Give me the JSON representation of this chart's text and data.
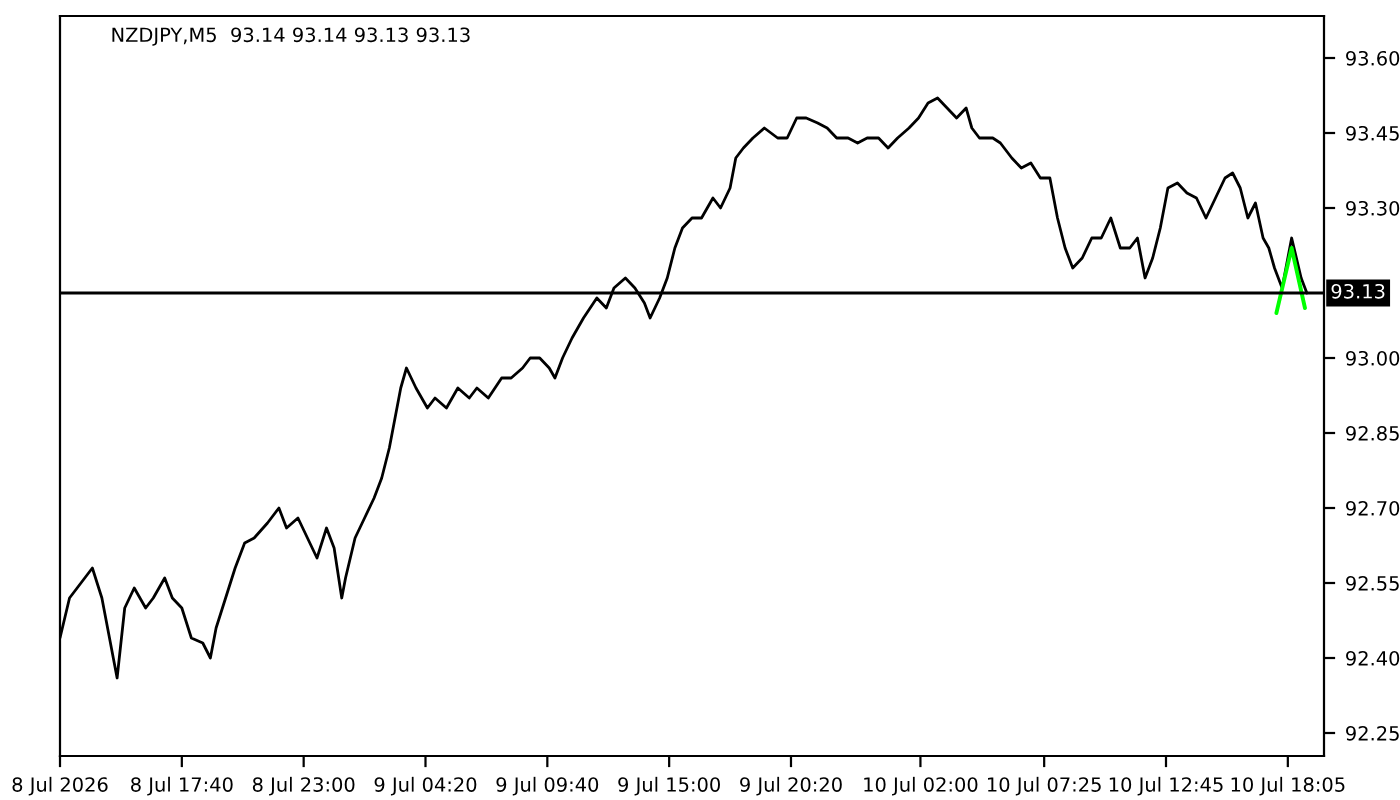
{
  "chart_data": {
    "type": "line",
    "title": "NZDJPY,M5  93.14 93.14 93.13 93.13",
    "ylim": [
      92.204,
      93.684
    ],
    "yticks": [
      {
        "value": 92.25,
        "label": "92.25"
      },
      {
        "value": 92.4,
        "label": "92.40"
      },
      {
        "value": 92.55,
        "label": "92.55"
      },
      {
        "value": 92.7,
        "label": "92.70"
      },
      {
        "value": 92.85,
        "label": "92.85"
      },
      {
        "value": 93.0,
        "label": "93.00"
      },
      {
        "value": 93.3,
        "label": "93.30"
      },
      {
        "value": 93.45,
        "label": "93.45"
      },
      {
        "value": 93.6,
        "label": "93.60"
      }
    ],
    "xlim": [
      "2026-07-08T12:20",
      "2026-07-10T19:40"
    ],
    "xticks": [
      {
        "value": "2026-07-08T12:20",
        "label": "8 Jul 2026"
      },
      {
        "value": "2026-07-08T17:40",
        "label": "8 Jul 17:40"
      },
      {
        "value": "2026-07-08T23:00",
        "label": "8 Jul 23:00"
      },
      {
        "value": "2026-07-09T04:20",
        "label": "9 Jul 04:20"
      },
      {
        "value": "2026-07-09T09:40",
        "label": "9 Jul 09:40"
      },
      {
        "value": "2026-07-09T15:00",
        "label": "9 Jul 15:00"
      },
      {
        "value": "2026-07-09T20:20",
        "label": "9 Jul 20:20"
      },
      {
        "value": "2026-07-10T02:00",
        "label": "10 Jul 02:00"
      },
      {
        "value": "2026-07-10T07:25",
        "label": "10 Jul 07:25"
      },
      {
        "value": "2026-07-10T12:45",
        "label": "10 Jul 12:45"
      },
      {
        "value": "2026-07-10T18:05",
        "label": "10 Jul 18:05"
      }
    ],
    "grid": false,
    "series": [
      {
        "color": "#000000",
        "x": [
          "2026-07-08T12:20",
          "2026-07-08T12:45",
          "2026-07-08T13:05",
          "2026-07-08T13:45",
          "2026-07-08T14:10",
          "2026-07-08T14:35",
          "2026-07-08T14:50",
          "2026-07-08T15:10",
          "2026-07-08T15:35",
          "2026-07-08T16:05",
          "2026-07-08T16:25",
          "2026-07-08T16:55",
          "2026-07-08T17:15",
          "2026-07-08T17:40",
          "2026-07-08T18:05",
          "2026-07-08T18:35",
          "2026-07-08T18:55",
          "2026-07-08T19:10",
          "2026-07-08T19:35",
          "2026-07-08T20:00",
          "2026-07-08T20:25",
          "2026-07-08T20:50",
          "2026-07-08T21:25",
          "2026-07-08T21:55",
          "2026-07-08T22:15",
          "2026-07-08T22:45",
          "2026-07-08T23:10",
          "2026-07-08T23:35",
          "2026-07-09T00:00",
          "2026-07-09T00:20",
          "2026-07-09T00:40",
          "2026-07-09T00:50",
          "2026-07-09T01:15",
          "2026-07-09T01:40",
          "2026-07-09T02:05",
          "2026-07-09T02:25",
          "2026-07-09T02:45",
          "2026-07-09T03:15",
          "2026-07-09T03:30",
          "2026-07-09T03:55",
          "2026-07-09T04:25",
          "2026-07-09T04:45",
          "2026-07-09T05:15",
          "2026-07-09T05:45",
          "2026-07-09T06:15",
          "2026-07-09T06:35",
          "2026-07-09T07:05",
          "2026-07-09T07:40",
          "2026-07-09T08:05",
          "2026-07-09T08:35",
          "2026-07-09T08:55",
          "2026-07-09T09:20",
          "2026-07-09T09:45",
          "2026-07-09T10:00",
          "2026-07-09T10:20",
          "2026-07-09T10:45",
          "2026-07-09T11:15",
          "2026-07-09T11:50",
          "2026-07-09T12:15",
          "2026-07-09T12:35",
          "2026-07-09T13:05",
          "2026-07-09T13:30",
          "2026-07-09T13:55",
          "2026-07-09T14:10",
          "2026-07-09T14:35",
          "2026-07-09T14:55",
          "2026-07-09T15:15",
          "2026-07-09T15:35",
          "2026-07-09T16:00",
          "2026-07-09T16:25",
          "2026-07-09T16:55",
          "2026-07-09T17:15",
          "2026-07-09T17:40",
          "2026-07-09T17:55",
          "2026-07-09T18:15",
          "2026-07-09T18:40",
          "2026-07-09T19:10",
          "2026-07-09T19:45",
          "2026-07-09T20:10",
          "2026-07-09T20:35",
          "2026-07-09T21:00",
          "2026-07-09T21:30",
          "2026-07-09T21:55",
          "2026-07-09T22:20",
          "2026-07-09T22:50",
          "2026-07-09T23:15",
          "2026-07-09T23:40",
          "2026-07-10T00:10",
          "2026-07-10T00:35",
          "2026-07-10T01:00",
          "2026-07-10T01:30",
          "2026-07-10T01:55",
          "2026-07-10T02:20",
          "2026-07-10T02:45",
          "2026-07-10T03:10",
          "2026-07-10T03:35",
          "2026-07-10T04:00",
          "2026-07-10T04:15",
          "2026-07-10T04:35",
          "2026-07-10T05:10",
          "2026-07-10T05:30",
          "2026-07-10T06:00",
          "2026-07-10T06:25",
          "2026-07-10T06:50",
          "2026-07-10T07:15",
          "2026-07-10T07:40",
          "2026-07-10T08:00",
          "2026-07-10T08:20",
          "2026-07-10T08:40",
          "2026-07-10T09:05",
          "2026-07-10T09:30",
          "2026-07-10T09:55",
          "2026-07-10T10:20",
          "2026-07-10T10:45",
          "2026-07-10T11:10",
          "2026-07-10T11:30",
          "2026-07-10T11:50",
          "2026-07-10T12:10",
          "2026-07-10T12:30",
          "2026-07-10T12:50",
          "2026-07-10T13:15",
          "2026-07-10T13:40",
          "2026-07-10T14:05",
          "2026-07-10T14:30",
          "2026-07-10T14:55",
          "2026-07-10T15:20",
          "2026-07-10T15:40",
          "2026-07-10T16:00",
          "2026-07-10T16:20",
          "2026-07-10T16:40",
          "2026-07-10T17:00",
          "2026-07-10T17:15",
          "2026-07-10T17:30",
          "2026-07-10T17:50",
          "2026-07-10T18:15",
          "2026-07-10T18:40",
          "2026-07-10T18:55"
        ],
        "values": [
          92.44,
          92.52,
          92.54,
          92.58,
          92.52,
          92.42,
          92.36,
          92.5,
          92.54,
          92.5,
          92.52,
          92.56,
          92.52,
          92.5,
          92.44,
          92.43,
          92.4,
          92.46,
          92.52,
          92.58,
          92.63,
          92.64,
          92.67,
          92.7,
          92.66,
          92.68,
          92.64,
          92.6,
          92.66,
          92.62,
          92.52,
          92.56,
          92.64,
          92.68,
          92.72,
          92.76,
          92.82,
          92.94,
          92.98,
          92.94,
          92.9,
          92.92,
          92.9,
          92.94,
          92.92,
          92.94,
          92.92,
          92.96,
          92.96,
          92.98,
          93.0,
          93.0,
          92.98,
          92.96,
          93.0,
          93.04,
          93.08,
          93.12,
          93.1,
          93.14,
          93.16,
          93.14,
          93.11,
          93.08,
          93.12,
          93.16,
          93.22,
          93.26,
          93.28,
          93.28,
          93.32,
          93.3,
          93.34,
          93.4,
          93.42,
          93.44,
          93.46,
          93.44,
          93.44,
          93.48,
          93.48,
          93.47,
          93.46,
          93.44,
          93.44,
          93.43,
          93.44,
          93.44,
          93.42,
          93.44,
          93.46,
          93.48,
          93.51,
          93.52,
          93.5,
          93.48,
          93.5,
          93.46,
          93.44,
          93.44,
          93.43,
          93.4,
          93.38,
          93.39,
          93.36,
          93.36,
          93.28,
          93.22,
          93.18,
          93.2,
          93.24,
          93.24,
          93.28,
          93.22,
          93.22,
          93.24,
          93.16,
          93.2,
          93.26,
          93.34,
          93.35,
          93.33,
          93.32,
          93.28,
          93.32,
          93.36,
          93.37,
          93.34,
          93.28,
          93.31,
          93.24,
          93.22,
          93.18,
          93.14,
          93.24,
          93.16,
          93.13
        ]
      },
      {
        "color": "#00ff00",
        "x": [
          "2026-07-10T17:35",
          "2026-07-10T18:15",
          "2026-07-10T18:50"
        ],
        "values": [
          93.09,
          93.22,
          93.1
        ]
      }
    ],
    "ref_lines": [
      {
        "axis": "y",
        "value": 93.13,
        "label": "93.13",
        "color": "#000000"
      }
    ]
  }
}
